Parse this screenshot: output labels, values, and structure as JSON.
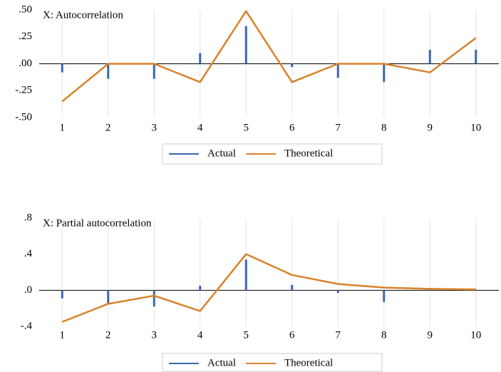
{
  "chart_data": [
    {
      "type": "combo",
      "title": "X: Autocorrelation",
      "categories": [
        "1",
        "2",
        "3",
        "4",
        "5",
        "6",
        "7",
        "8",
        "9",
        "10"
      ],
      "series": [
        {
          "name": "Actual",
          "type": "spike",
          "color": "#3a66b0",
          "values": [
            -0.08,
            -0.14,
            -0.14,
            0.1,
            0.35,
            -0.03,
            -0.13,
            -0.17,
            0.13,
            0.13
          ]
        },
        {
          "name": "Theoretical",
          "type": "line",
          "color": "#d9822b",
          "values": [
            -0.35,
            0,
            0,
            -0.17,
            0.49,
            -0.17,
            0,
            0,
            -0.08,
            0.24
          ]
        }
      ],
      "ylim": [
        -0.5,
        0.5
      ],
      "yticks": [
        {
          "value": 0.5,
          "label": ".50"
        },
        {
          "value": 0.25,
          "label": ".25"
        },
        {
          "value": 0,
          "label": ".00"
        },
        {
          "value": -0.25,
          "label": "-.25"
        },
        {
          "value": -0.5,
          "label": "-.50"
        }
      ],
      "grid": true,
      "legend": "bottom"
    },
    {
      "type": "combo",
      "title": "X: Partial autocorrelation",
      "categories": [
        "1",
        "2",
        "3",
        "4",
        "5",
        "6",
        "7",
        "8",
        "9",
        "10"
      ],
      "series": [
        {
          "name": "Actual",
          "type": "spike",
          "color": "#3a66b0",
          "values": [
            -0.09,
            -0.15,
            -0.18,
            0.05,
            0.34,
            0.06,
            -0.03,
            -0.13,
            0.01,
            0.01
          ]
        },
        {
          "name": "Theoretical",
          "type": "line",
          "color": "#d9822b",
          "values": [
            -0.35,
            -0.15,
            -0.06,
            -0.23,
            0.4,
            0.17,
            0.07,
            0.03,
            0.015,
            0.01
          ]
        }
      ],
      "ylim": [
        -0.4,
        0.8
      ],
      "yticks": [
        {
          "value": 0.8,
          "label": ".8"
        },
        {
          "value": 0.4,
          "label": ".4"
        },
        {
          "value": 0,
          "label": ".0"
        },
        {
          "value": -0.4,
          "label": "-.4"
        }
      ],
      "grid": true,
      "legend": "bottom"
    }
  ]
}
